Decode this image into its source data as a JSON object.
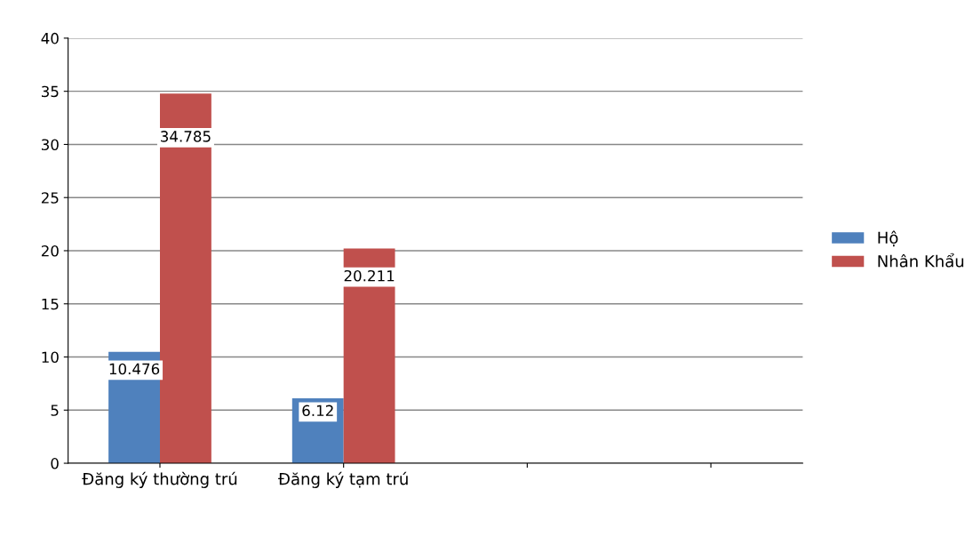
{
  "chart_data": {
    "type": "bar",
    "categories": [
      "Đăng ký thường trú",
      "Đăng ký tạm trú",
      null,
      null
    ],
    "series": [
      {
        "name": "Hộ",
        "color": "#4f81bd",
        "values": [
          10.476,
          6.12,
          null,
          null
        ]
      },
      {
        "name": "Nhân Khẩu",
        "color": "#c0504d",
        "values": [
          34.785,
          20.211,
          null,
          null
        ]
      }
    ],
    "ylim": [
      0,
      40
    ],
    "yticks": [
      0,
      5,
      10,
      15,
      20,
      25,
      30,
      35,
      40
    ],
    "grid": "y",
    "legend": "right",
    "data_labels": true
  }
}
